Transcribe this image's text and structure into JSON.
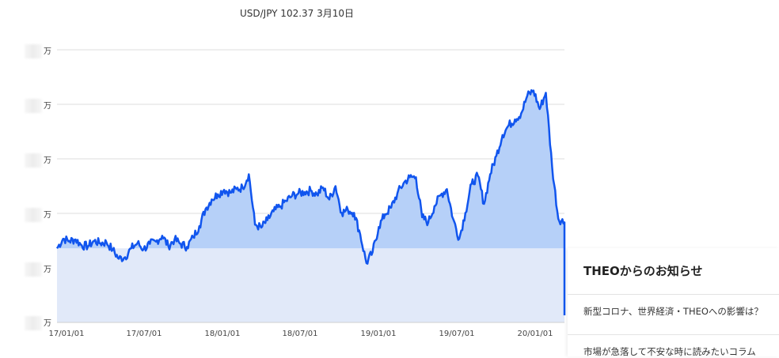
{
  "chart": {
    "title": "USD/JPY 102.37 3月10日",
    "y_unit": "万",
    "y_ticks": [
      "万",
      "万",
      "万",
      "万",
      "万",
      "万"
    ],
    "x_ticks": [
      "17/01/01",
      "17/07/01",
      "18/01/01",
      "18/07/01",
      "19/01/01",
      "19/07/01",
      "20/01/01"
    ],
    "line_color": "#1155ee",
    "fill_above_color": "#b6d0f8",
    "fill_base_color": "#e1e9f9"
  },
  "chart_data": {
    "type": "area",
    "title": "USD/JPY 102.37 3月10日",
    "xlabel": "",
    "ylabel": "",
    "x_ticks": [
      "17/01/01",
      "17/07/01",
      "18/01/01",
      "18/07/01",
      "19/01/01",
      "19/07/01",
      "20/01/01"
    ],
    "y_ticks_visible_text": "万",
    "grid": true,
    "baseline_index": 1.0,
    "series": [
      {
        "values": [
          1.0,
          1.13,
          1.1,
          1.12,
          1.04,
          1.03,
          1.1,
          1.07,
          1.08,
          0.98,
          0.86,
          0.88,
          1.0,
          1.07,
          0.99,
          1.06,
          1.09,
          1.17,
          1.03,
          1.12,
          1.06,
          1.02,
          1.15,
          1.3,
          1.53,
          1.66,
          1.73,
          1.79,
          1.75,
          1.8,
          1.82,
          2.0,
          1.32,
          1.28,
          1.38,
          1.5,
          1.56,
          1.64,
          1.71,
          1.74,
          1.76,
          1.78,
          1.73,
          1.82,
          1.66,
          1.84,
          1.48,
          1.52,
          1.48,
          1.19,
          0.8,
          0.95,
          1.29,
          1.46,
          1.55,
          1.74,
          1.88,
          1.96,
          1.96,
          1.42,
          1.35,
          1.57,
          1.72,
          1.8,
          1.4,
          1.13,
          1.48,
          1.87,
          1.98,
          1.6,
          2.0,
          2.25,
          2.53,
          2.66,
          2.74,
          2.82,
          3.06,
          3.13,
          2.88,
          3.1,
          2.1,
          1.4,
          1.35
        ]
      }
    ]
  },
  "news": {
    "heading": "THEOからのお知らせ",
    "items": [
      "新型コロナ、世界経済・THEOへの影響は？",
      "市場が急落して不安な時に読みたいコラム"
    ]
  }
}
